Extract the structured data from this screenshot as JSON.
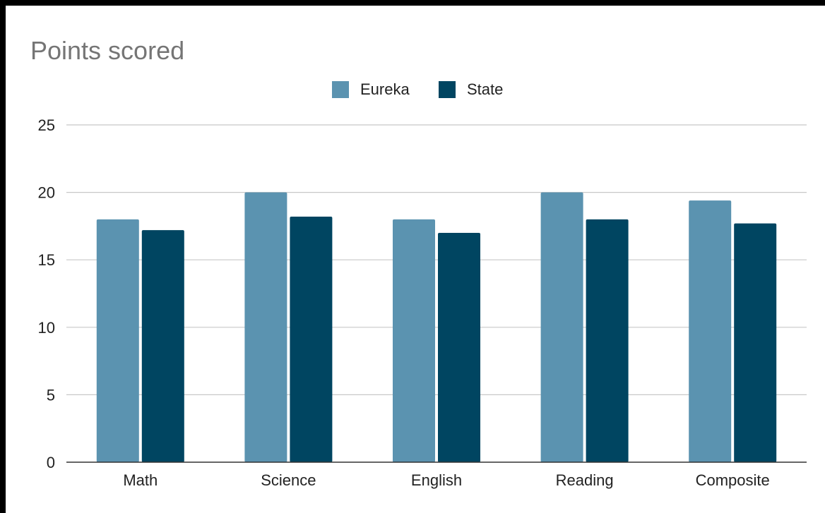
{
  "chart_data": {
    "type": "bar",
    "title": "Points scored",
    "xlabel": "",
    "ylabel": "",
    "categories": [
      "Math",
      "Science",
      "English",
      "Reading",
      "Composite"
    ],
    "series": [
      {
        "name": "Eureka",
        "color": "#5b93b0",
        "values": [
          18,
          20,
          18,
          20,
          19.4
        ]
      },
      {
        "name": "State",
        "color": "#004561",
        "values": [
          17.2,
          18.2,
          17.0,
          18.0,
          17.7
        ]
      }
    ],
    "ylim": [
      0,
      25
    ],
    "yticks": [
      "0",
      "5",
      "10",
      "15",
      "20",
      "25"
    ],
    "grid": true,
    "legend_position": "top-center"
  }
}
